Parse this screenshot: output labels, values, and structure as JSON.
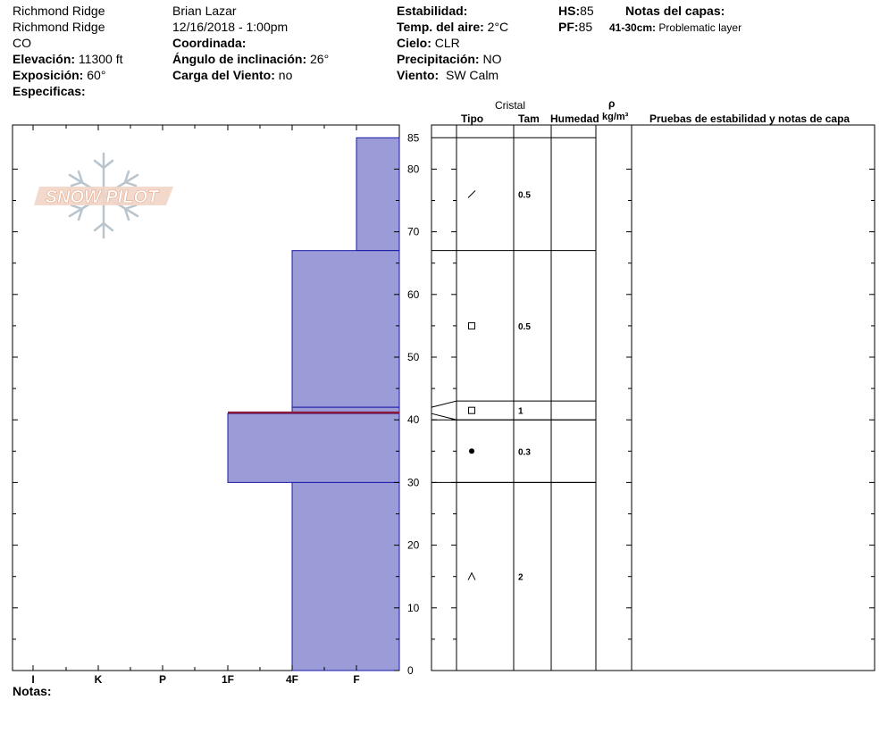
{
  "header": {
    "col1": [
      "Richmond Ridge",
      "Richmond Ridge",
      "CO"
    ],
    "elevation_label": "Elevación:",
    "elevation_value": "11300 ft",
    "aspect_label": "Exposición:",
    "aspect_value": "60°",
    "specifics_label": "Especificas:",
    "observer": "Brian Lazar",
    "datetime": "12/16/2018 - 1:00pm",
    "coord_label": "Coordinada:",
    "slope_label": "Ángulo de inclinación:",
    "slope_value": "26°",
    "wind_load_label": "Carga del Viento:",
    "wind_load_value": "no",
    "stability_label": "Estabilidad:",
    "air_temp_label": "Temp. del aire:",
    "air_temp_value": "2°C",
    "sky_label": "Cielo:",
    "sky_value": "CLR",
    "precip_label": "Precipitación:",
    "precip_value": "NO",
    "wind_label": "Viento:",
    "wind_value": "SW Calm",
    "hs_label": "HS:",
    "hs_value": "85",
    "pf_label": "PF:",
    "pf_value": "85",
    "layer_notes_label": "Notas del capas:",
    "layer_note_range": "41-30cm:",
    "layer_note_text": "Problematic layer"
  },
  "logo_text": "SNOW PILOT",
  "columns": {
    "crystal": "Cristal",
    "type": "Tipo",
    "size": "Tam",
    "moisture": "Humedad",
    "rho": "ρ",
    "density_unit": "kg/m³",
    "tests": "Pruebas de estabilidad y notas de capa"
  },
  "notes_label": "Notas:",
  "colors": {
    "fill": "#9b9bd7",
    "edge": "#1a1aa8",
    "weak": "#8b1a3a"
  },
  "chart_data": {
    "type": "snow-profile",
    "hardness_scale": [
      "I",
      "K",
      "P",
      "1F",
      "4F",
      "F"
    ],
    "depth_ticks": [
      0,
      10,
      20,
      30,
      40,
      50,
      60,
      70,
      80,
      85
    ],
    "ylim": [
      0,
      85
    ],
    "layers": [
      {
        "top": 85,
        "bottom": 67,
        "hardness": "F"
      },
      {
        "top": 67,
        "bottom": 42,
        "hardness": "4F"
      },
      {
        "top": 42,
        "bottom": 41,
        "hardness": "4F"
      },
      {
        "top": 41,
        "bottom": 30,
        "hardness": "1F"
      },
      {
        "top": 30,
        "bottom": 0,
        "hardness": "4F"
      }
    ],
    "weak_layer_depth": 41,
    "crystal_layers": [
      {
        "top": 85,
        "bottom": 67,
        "type_icon": "decomposing-slash-icon",
        "size": "0.5"
      },
      {
        "top": 67,
        "bottom": 43,
        "type_icon": "faceted-square-icon",
        "size": "0.5"
      },
      {
        "top": 43,
        "bottom": 40,
        "type_icon": "faceted-square-icon",
        "size": "1"
      },
      {
        "top": 40,
        "bottom": 30,
        "type_icon": "melt-freeze-dot-icon",
        "size": "0.3"
      },
      {
        "top": 30,
        "bottom": 0,
        "type_icon": "depth-hoar-caret-icon",
        "size": "2"
      }
    ]
  }
}
